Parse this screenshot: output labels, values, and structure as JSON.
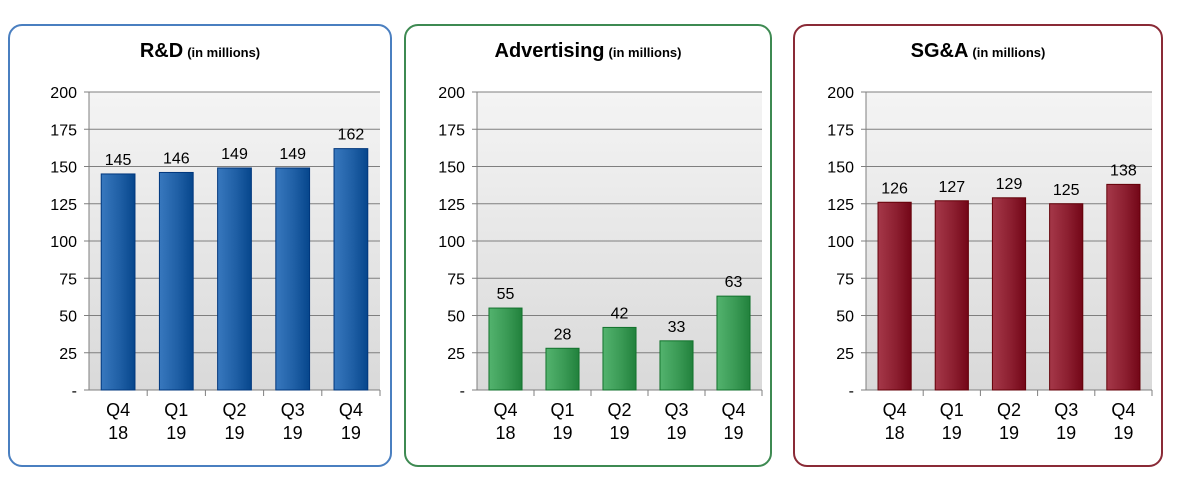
{
  "chart_data": [
    {
      "type": "bar",
      "title": "R&D",
      "subtitle": "(in millions)",
      "categories": [
        "Q4 18",
        "Q1 19",
        "Q2 19",
        "Q3 19",
        "Q4 19"
      ],
      "values": [
        145,
        146,
        149,
        149,
        162
      ],
      "ylim": [
        0,
        200
      ],
      "yticks": [
        "-",
        "25",
        "50",
        "75",
        "100",
        "125",
        "150",
        "175",
        "200"
      ],
      "grid": true,
      "bar_color": "#1f5fa5",
      "border_color": "#4a7fc0"
    },
    {
      "type": "bar",
      "title": "Advertising",
      "subtitle": "(in millions)",
      "categories": [
        "Q4 18",
        "Q1 19",
        "Q2 19",
        "Q3 19",
        "Q4 19"
      ],
      "values": [
        55,
        28,
        42,
        33,
        63
      ],
      "ylim": [
        0,
        200
      ],
      "yticks": [
        "-",
        "25",
        "50",
        "75",
        "100",
        "125",
        "150",
        "175",
        "200"
      ],
      "grid": true,
      "bar_color": "#3a9a55",
      "border_color": "#3e8a52"
    },
    {
      "type": "bar",
      "title": "SG&A",
      "subtitle": "(in millions)",
      "categories": [
        "Q4 18",
        "Q1 19",
        "Q2 19",
        "Q3 19",
        "Q4 19"
      ],
      "values": [
        126,
        127,
        129,
        125,
        138
      ],
      "ylim": [
        0,
        200
      ],
      "yticks": [
        "-",
        "25",
        "50",
        "75",
        "100",
        "125",
        "150",
        "175",
        "200"
      ],
      "grid": true,
      "bar_color": "#8c1f30",
      "border_color": "#8a2a36"
    }
  ]
}
